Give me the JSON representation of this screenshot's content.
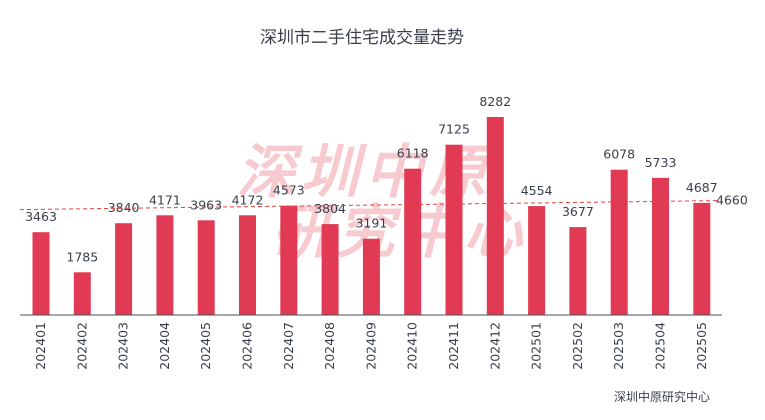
{
  "chart_data": {
    "type": "bar",
    "title": "深圳市二手住宅成交量走势",
    "categories": [
      "202401",
      "202402",
      "202403",
      "202404",
      "202405",
      "202406",
      "202407",
      "202408",
      "202409",
      "202410",
      "202411",
      "202412",
      "202501",
      "202502",
      "202503",
      "202504",
      "202505"
    ],
    "values": [
      3463,
      1785,
      3840,
      4171,
      3963,
      4172,
      4573,
      3804,
      3191,
      6118,
      7125,
      8282,
      4554,
      3677,
      6078,
      5733,
      4687
    ],
    "average_line": {
      "value": 4660,
      "label": "4660",
      "style": "dashed",
      "color": "#e8413c"
    },
    "ylim": [
      0,
      8282
    ],
    "grid": false,
    "bar_color": "#e03a55",
    "watermark": [
      "深圳中原",
      "研究中心"
    ],
    "source": "深圳中原研究中心"
  }
}
